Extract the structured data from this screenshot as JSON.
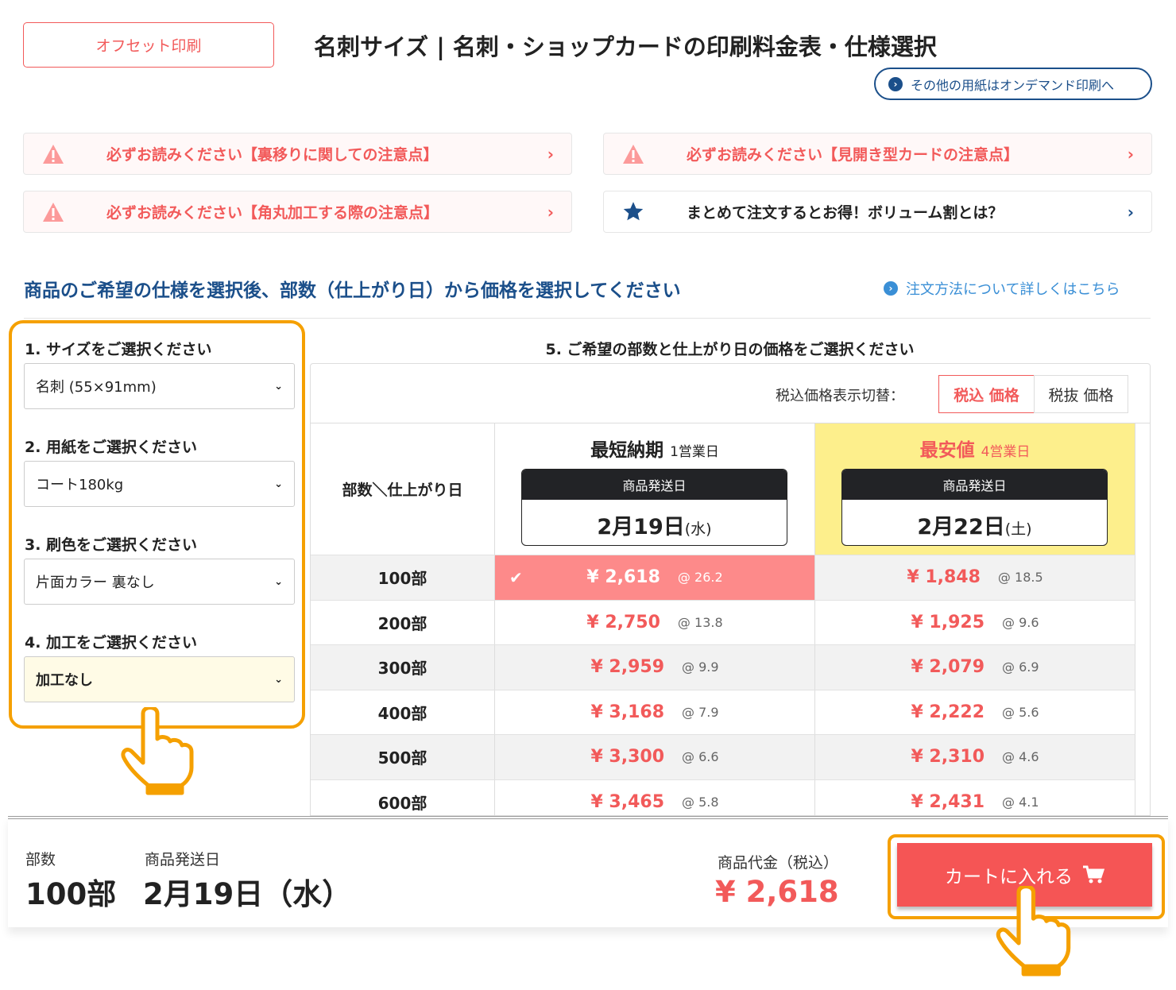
{
  "header": {
    "offset_button": "オフセット印刷",
    "title": "名刺サイズ | 名刺・ショップカードの印刷料金表・仕様選択",
    "ondemand_link": "その他の用紙はオンデマンド印刷へ"
  },
  "notices": [
    {
      "text": "必ずお読みください【裏移りに関しての注意点】",
      "icon": "warning-icon"
    },
    {
      "text": "必ずお読みください【見開き型カードの注意点】",
      "icon": "warning-icon"
    },
    {
      "text": "必ずお読みください【角丸加工する際の注意点】",
      "icon": "warning-icon"
    },
    {
      "text": "まとめて注文するとお得！ボリューム割とは？",
      "icon": "star-icon"
    }
  ],
  "lead": "商品のご希望の仕様を選択後、部数（仕上がり日）から価格を選択してください",
  "how_link": "注文方法について詳しくはこちら",
  "spec": [
    {
      "label": "1. サイズをご選択ください",
      "value": "名刺 (55×91mm)"
    },
    {
      "label": "2. 用紙をご選択ください",
      "value": "コート180kg"
    },
    {
      "label": "3. 刷色をご選択ください",
      "value": "片面カラー 裏なし"
    },
    {
      "label": "4. 加工をご選択ください",
      "value": "加工なし"
    }
  ],
  "table": {
    "title": "5. ご希望の部数と仕上がり日の価格をご選択ください",
    "tax_label": "税込価格表示切替：",
    "tax_in": "税込 価格",
    "tax_ex": "税抜 価格",
    "corner": "部数＼仕上がり日",
    "columns": [
      {
        "title": "最短納期",
        "days": "1営業日",
        "ship_label": "商品発送日",
        "date": "2月19日",
        "dow": "(水)"
      },
      {
        "title": "最安値",
        "days": "4営業日",
        "ship_label": "商品発送日",
        "date": "2月22日",
        "dow": "(土)"
      }
    ],
    "rows": [
      {
        "qty": "100部",
        "p1": "¥ 2,618",
        "u1": "@ 26.2",
        "p2": "¥ 1,848",
        "u2": "@ 18.5"
      },
      {
        "qty": "200部",
        "p1": "¥ 2,750",
        "u1": "@ 13.8",
        "p2": "¥ 1,925",
        "u2": "@ 9.6"
      },
      {
        "qty": "300部",
        "p1": "¥ 2,959",
        "u1": "@ 9.9",
        "p2": "¥ 2,079",
        "u2": "@ 6.9"
      },
      {
        "qty": "400部",
        "p1": "¥ 3,168",
        "u1": "@ 7.9",
        "p2": "¥ 2,222",
        "u2": "@ 5.6"
      },
      {
        "qty": "500部",
        "p1": "¥ 3,300",
        "u1": "@ 6.6",
        "p2": "¥ 2,310",
        "u2": "@ 4.6"
      },
      {
        "qty": "600部",
        "p1": "¥ 3,465",
        "u1": "@ 5.8",
        "p2": "¥ 2,431",
        "u2": "@ 4.1"
      }
    ]
  },
  "summary": {
    "qty_label": "部数",
    "qty": "100部",
    "ship_label": "商品発送日",
    "ship": "2月19日（水）",
    "price_label": "商品代金（税込）",
    "price": "¥ 2,618",
    "cart": "カートに入れる"
  },
  "colors": {
    "accent": "#f25a5a",
    "navy": "#1b4f8a",
    "highlight": "#f5a000",
    "cheapest_bg": "#fdef8c"
  }
}
